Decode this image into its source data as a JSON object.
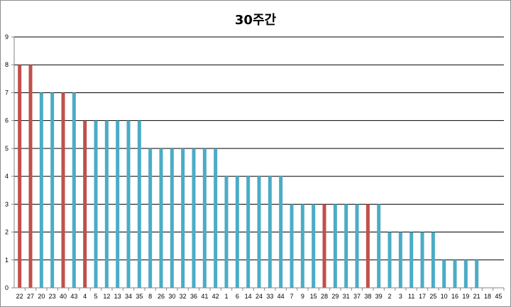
{
  "chart_data": {
    "type": "bar",
    "title": "30주간",
    "xlabel": "",
    "ylabel": "",
    "ylim": [
      0,
      9
    ],
    "yticks": [
      0,
      1,
      2,
      3,
      4,
      5,
      6,
      7,
      8,
      9
    ],
    "grid": true,
    "legend": "none",
    "colors": {
      "default": "#4bacc6",
      "highlight": "#c0504d",
      "grid": "#000000",
      "axis": "#868686"
    },
    "categories": [
      "22",
      "27",
      "20",
      "23",
      "40",
      "43",
      "4",
      "5",
      "12",
      "13",
      "34",
      "35",
      "8",
      "26",
      "30",
      "32",
      "36",
      "41",
      "42",
      "1",
      "6",
      "14",
      "24",
      "33",
      "44",
      "7",
      "9",
      "15",
      "28",
      "29",
      "31",
      "37",
      "38",
      "39",
      "2",
      "3",
      "11",
      "17",
      "25",
      "10",
      "16",
      "19",
      "21",
      "18",
      "45"
    ],
    "values": [
      8,
      8,
      7,
      7,
      7,
      7,
      6,
      6,
      6,
      6,
      6,
      6,
      5,
      5,
      5,
      5,
      5,
      5,
      5,
      4,
      4,
      4,
      4,
      4,
      4,
      3,
      3,
      3,
      3,
      3,
      3,
      3,
      3,
      3,
      2,
      2,
      2,
      2,
      2,
      1,
      1,
      1,
      1,
      0,
      0
    ],
    "highlighted": [
      "22",
      "27",
      "40",
      "4",
      "28",
      "38"
    ]
  }
}
